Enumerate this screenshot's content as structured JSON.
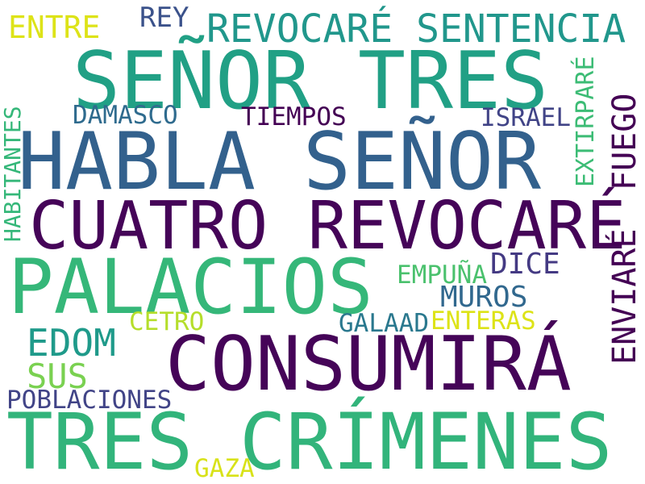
{
  "words": [
    {
      "text": "SEÑOR TRES",
      "color": "#21a085"
    },
    {
      "text": "HABLA SEÑOR",
      "color": "#33618d"
    },
    {
      "text": "CUATRO REVOCARÉ",
      "color": "#450458"
    },
    {
      "text": "PALACIOS",
      "color": "#35b779"
    },
    {
      "text": "CONSUMIRÁ",
      "color": "#450458"
    },
    {
      "text": "TRES CRÍMENES",
      "color": "#32b47b"
    },
    {
      "text": "REVOCARÉ SENTENCIA",
      "color": "#21978c"
    },
    {
      "text": "ENTRE",
      "color": "#dde318"
    },
    {
      "text": "REY",
      "color": "#3b528b"
    },
    {
      "text": "DAMASCO",
      "color": "#2f6b8e"
    },
    {
      "text": "TIEMPOS",
      "color": "#440154"
    },
    {
      "text": "ISRAEL",
      "color": "#414487"
    },
    {
      "text": "HABITANTES",
      "color": "#35b779"
    },
    {
      "text": "EXTIRPARÉ",
      "color": "#3cbc75"
    },
    {
      "text": "FUEGO",
      "color": "#440154"
    },
    {
      "text": "DICE",
      "color": "#443a83"
    },
    {
      "text": "EMPUÑA",
      "color": "#4ac16d"
    },
    {
      "text": "MUROS",
      "color": "#31688e"
    },
    {
      "text": "ENVIARÉ",
      "color": "#440154"
    },
    {
      "text": "EDOM",
      "color": "#1f9a8a"
    },
    {
      "text": "CETRO",
      "color": "#b5de2b"
    },
    {
      "text": "GALAAD",
      "color": "#2a788e"
    },
    {
      "text": "ENTERAS",
      "color": "#dde318"
    },
    {
      "text": "SUS",
      "color": "#7ad151"
    },
    {
      "text": "POBLACIONES",
      "color": "#414487"
    },
    {
      "text": "GAZA",
      "color": "#d8e219"
    }
  ]
}
